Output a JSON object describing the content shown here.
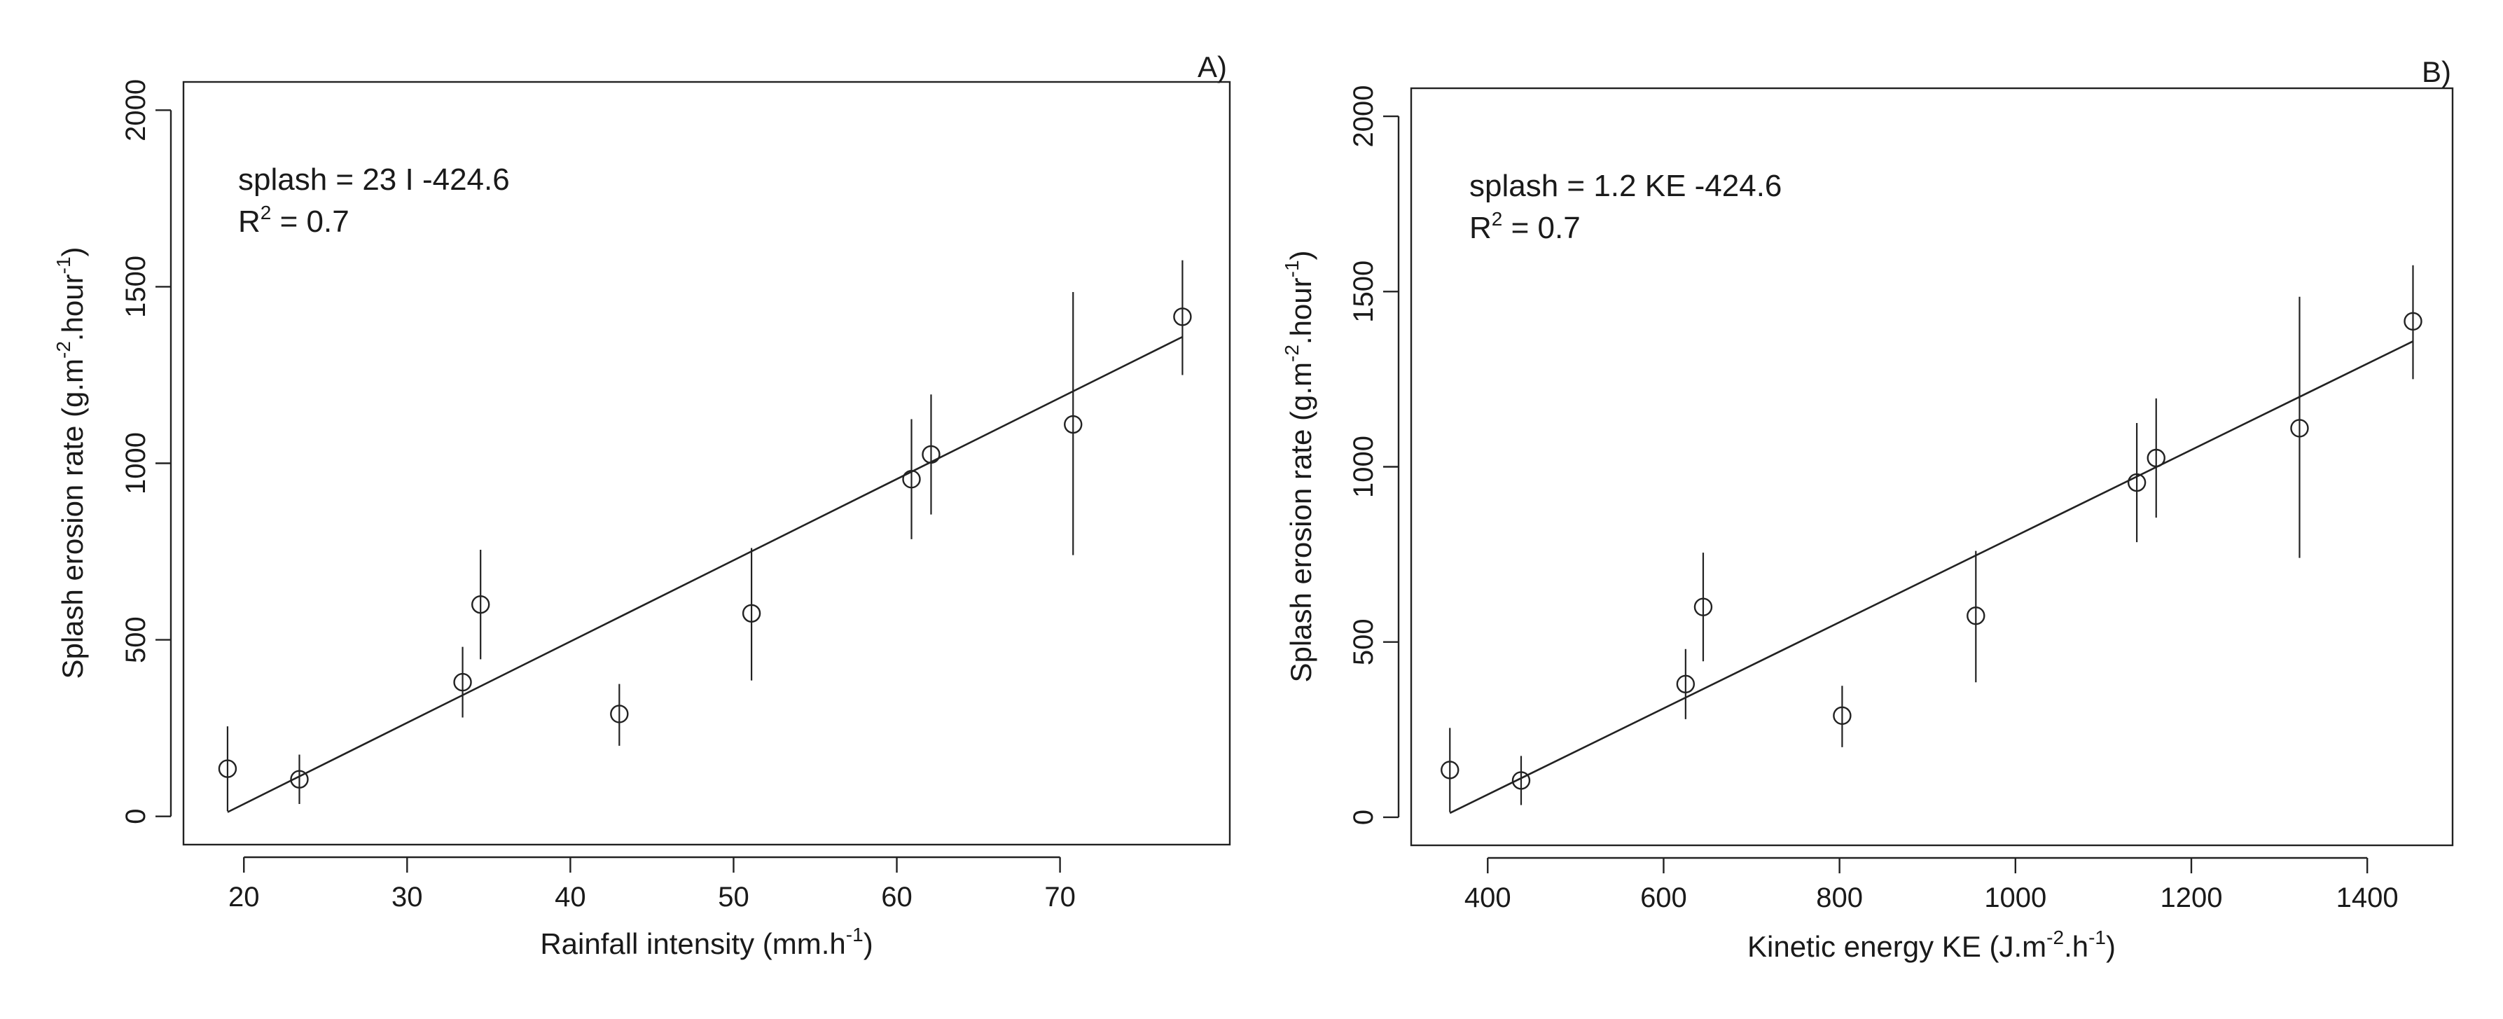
{
  "chart_data": [
    {
      "type": "scatter",
      "panel_tag": "A)",
      "xlabel": "Rainfall intensity (mm.h",
      "xlabel_sup": "-1",
      "xlabel_end": ")",
      "ylabel": "Splash erosion rate (g.m",
      "ylabel_sup1": "-2",
      "ylabel_mid": ".hour",
      "ylabel_sup2": "-1",
      "ylabel_end": ")",
      "xlim": [
        16.3,
        80.4
      ],
      "ylim": [
        -80,
        2080
      ],
      "xticks": [
        20,
        30,
        40,
        50,
        60,
        70
      ],
      "xtick_labels": [
        "20",
        "30",
        "40",
        "50",
        "60",
        "70"
      ],
      "yticks": [
        0,
        500,
        1000,
        1500,
        2000
      ],
      "ytick_labels": [
        "0",
        "500",
        "1000",
        "1500",
        "2000"
      ],
      "equation": "splash =  23 I -424.6",
      "r2_label": "R",
      "r2_sup": "2",
      "r2_value": " =  0.7",
      "fit_line": {
        "x0": 19.0,
        "y0": 12,
        "x1": 77.5,
        "y1": 1358
      },
      "points": [
        {
          "x": 19.0,
          "y": 135,
          "ymin": 15,
          "ymax": 255
        },
        {
          "x": 23.4,
          "y": 105,
          "ymin": 35,
          "ymax": 175
        },
        {
          "x": 33.4,
          "y": 380,
          "ymin": 280,
          "ymax": 480
        },
        {
          "x": 34.5,
          "y": 600,
          "ymin": 445,
          "ymax": 755
        },
        {
          "x": 43.0,
          "y": 290,
          "ymin": 200,
          "ymax": 375
        },
        {
          "x": 51.1,
          "y": 575,
          "ymin": 385,
          "ymax": 760
        },
        {
          "x": 60.9,
          "y": 955,
          "ymin": 785,
          "ymax": 1125
        },
        {
          "x": 62.1,
          "y": 1025,
          "ymin": 855,
          "ymax": 1195
        },
        {
          "x": 70.8,
          "y": 1110,
          "ymin": 740,
          "ymax": 1485
        },
        {
          "x": 77.5,
          "y": 1415,
          "ymin": 1250,
          "ymax": 1575
        }
      ]
    },
    {
      "type": "scatter",
      "panel_tag": "B)",
      "xlabel": "Kinetic energy KE (J.m",
      "xlabel_sup": "-2",
      "xlabel_mid": ".h",
      "xlabel_sup2": "-1",
      "xlabel_end": ")",
      "ylabel": "Splash erosion rate (g.m",
      "ylabel_sup1": "-2",
      "ylabel_mid": ".hour",
      "ylabel_sup2": "-1",
      "ylabel_end": ")",
      "xlim": [
        313,
        1497
      ],
      "ylim": [
        -80,
        2080
      ],
      "xticks": [
        400,
        600,
        800,
        1000,
        1200,
        1400
      ],
      "xtick_labels": [
        "400",
        "600",
        "800",
        "1000",
        "1200",
        "1400"
      ],
      "yticks": [
        0,
        500,
        1000,
        1500,
        2000
      ],
      "ytick_labels": [
        "0",
        "500",
        "1000",
        "1500",
        "2000"
      ],
      "equation": "splash =  1.2 KE -424.6",
      "r2_label": "R",
      "r2_sup": "2",
      "r2_value": " = 0.7",
      "fit_line": {
        "x0": 357,
        "y0": 12,
        "x1": 1452,
        "y1": 1358
      },
      "points": [
        {
          "x": 357,
          "y": 135,
          "ymin": 15,
          "ymax": 255
        },
        {
          "x": 438,
          "y": 105,
          "ymin": 35,
          "ymax": 175
        },
        {
          "x": 625,
          "y": 380,
          "ymin": 280,
          "ymax": 480
        },
        {
          "x": 645,
          "y": 600,
          "ymin": 445,
          "ymax": 755
        },
        {
          "x": 803,
          "y": 290,
          "ymin": 200,
          "ymax": 375
        },
        {
          "x": 955,
          "y": 575,
          "ymin": 385,
          "ymax": 760
        },
        {
          "x": 1138,
          "y": 955,
          "ymin": 785,
          "ymax": 1125
        },
        {
          "x": 1160,
          "y": 1025,
          "ymin": 855,
          "ymax": 1195
        },
        {
          "x": 1323,
          "y": 1110,
          "ymin": 740,
          "ymax": 1485
        },
        {
          "x": 1452,
          "y": 1415,
          "ymin": 1250,
          "ymax": 1575
        }
      ]
    }
  ]
}
